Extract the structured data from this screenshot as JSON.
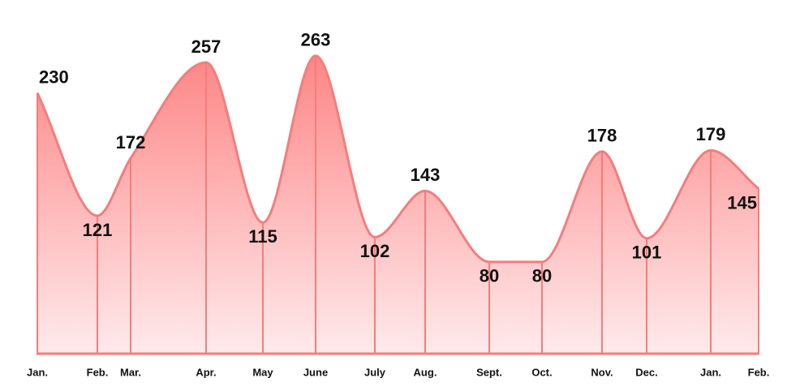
{
  "chart_data": {
    "type": "area",
    "categories": [
      "Jan.",
      "Feb.",
      "Mar.",
      "Apr.",
      "May",
      "June",
      "July",
      "Aug.",
      "Sept.",
      "Oct.",
      "Nov.",
      "Dec.",
      "Jan.",
      "Feb."
    ],
    "values": [
      230,
      121,
      172,
      257,
      115,
      263,
      102,
      143,
      80,
      80,
      178,
      101,
      179,
      145
    ],
    "color": "#f47d7d",
    "ylim": [
      0,
      270
    ]
  }
}
